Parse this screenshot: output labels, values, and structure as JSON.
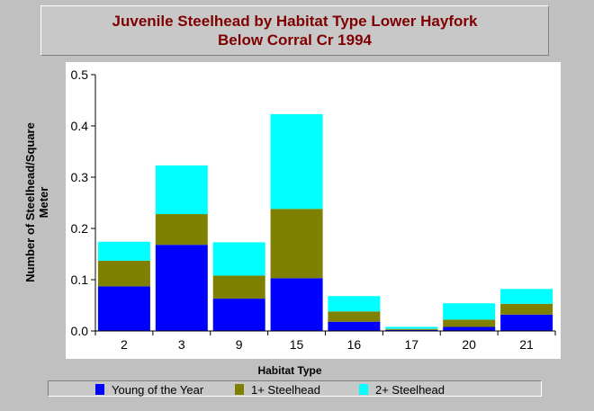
{
  "chart_data": {
    "type": "bar",
    "stacked": true,
    "title_line1": "Juvenile Steelhead by Habitat Type Lower Hayfork",
    "title_line2": "Below Corral Cr 1994",
    "xlabel": "Habitat Type",
    "ylabel_line1": "Number of Steelhead/Square",
    "ylabel_line2": "Meter",
    "ylim": [
      0,
      0.5
    ],
    "yticks": [
      "0.0",
      "0.1",
      "0.2",
      "0.3",
      "0.4",
      "0.5"
    ],
    "categories": [
      "2",
      "3",
      "9",
      "15",
      "16",
      "17",
      "20",
      "21"
    ],
    "series": [
      {
        "name": "Young of the Year",
        "color": "#0000ff",
        "values": [
          0.087,
          0.168,
          0.063,
          0.103,
          0.018,
          0.002,
          0.008,
          0.032
        ]
      },
      {
        "name": "1+ Steelhead",
        "color": "#808000",
        "values": [
          0.05,
          0.06,
          0.045,
          0.135,
          0.02,
          0.002,
          0.014,
          0.021
        ]
      },
      {
        "name": "2+ Steelhead",
        "color": "#00ffff",
        "values": [
          0.037,
          0.095,
          0.065,
          0.185,
          0.03,
          0.004,
          0.032,
          0.029
        ]
      }
    ],
    "grid": false,
    "legend_position": "bottom"
  }
}
